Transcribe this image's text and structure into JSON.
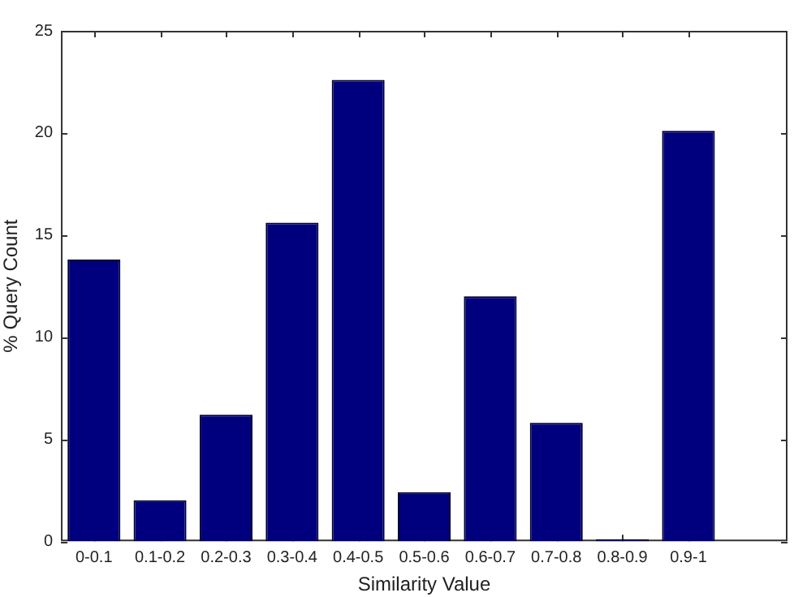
{
  "chart_data": {
    "type": "bar",
    "xlabel": "Similarity Value",
    "ylabel": "% Query Count",
    "categories": [
      "0-0.1",
      "0.1-0.2",
      "0.2-0.3",
      "0.3-0.4",
      "0.4-0.5",
      "0.5-0.6",
      "0.6-0.7",
      "0.7-0.8",
      "0.8-0.9",
      "0.9-1"
    ],
    "values": [
      13.8,
      2.0,
      6.2,
      15.6,
      22.6,
      2.4,
      12.0,
      5.8,
      0.1,
      20.1
    ],
    "color": "#00007f",
    "ylim": [
      0,
      25
    ],
    "yticks": [
      0,
      5,
      10,
      15,
      20,
      25
    ],
    "grid": false,
    "legend": false
  }
}
